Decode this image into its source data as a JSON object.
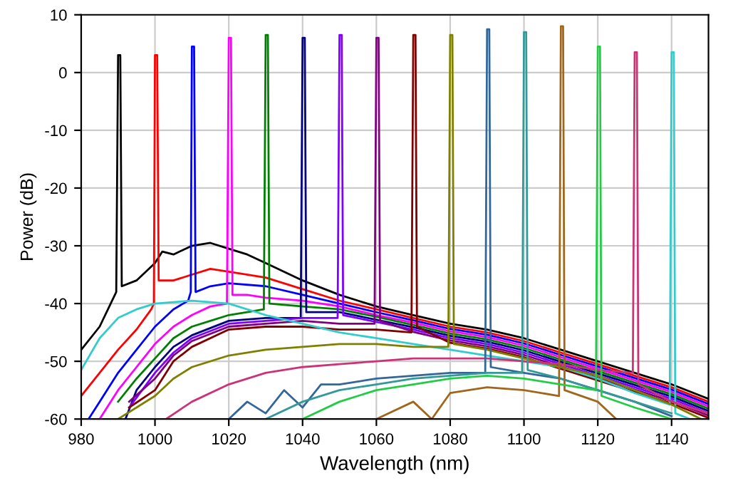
{
  "chart_data": {
    "type": "line",
    "xlabel": "Wavelength (nm)",
    "ylabel": "Power (dB)",
    "xlim": [
      980,
      1150
    ],
    "ylim": [
      -60,
      10
    ],
    "xticks": [
      980,
      1000,
      1020,
      1040,
      1060,
      1080,
      1100,
      1120,
      1140
    ],
    "yticks": [
      -60,
      -50,
      -40,
      -30,
      -20,
      -10,
      0,
      10
    ],
    "grid": true,
    "line_style": "solid",
    "series": [
      {
        "color": "#000000",
        "x": [
          980,
          985,
          988,
          989.5,
          990,
          990.6,
          991,
          995,
          1000,
          1002,
          1005,
          1010,
          1015,
          1020,
          1025,
          1030,
          1040,
          1050,
          1060,
          1070,
          1080,
          1090,
          1100,
          1110,
          1120,
          1130,
          1140,
          1150
        ],
        "values": [
          -48,
          -44,
          -40,
          -38,
          3,
          3,
          -37,
          -36,
          -33,
          -31,
          -31.5,
          -30,
          -29.5,
          -30.5,
          -31.5,
          -33,
          -36,
          -38.5,
          -40.5,
          -42,
          -43.5,
          -44.5,
          -46,
          -48,
          -50,
          -52,
          -54,
          -56.5
        ]
      },
      {
        "color": "#ff0000",
        "x": [
          980,
          985,
          990,
          995,
          999,
          999.7,
          1000,
          1000.6,
          1001,
          1005,
          1010,
          1015,
          1020,
          1030,
          1040,
          1050,
          1060,
          1070,
          1080,
          1090,
          1100,
          1110,
          1120,
          1130,
          1140,
          1150
        ],
        "values": [
          -56,
          -52,
          -48,
          -44.5,
          -41,
          -40,
          3,
          3,
          -36,
          -36,
          -35,
          -34,
          -34.5,
          -35.5,
          -37.5,
          -39.5,
          -41,
          -42.5,
          -44,
          -45,
          -46.5,
          -48.5,
          -50.5,
          -52.5,
          -54.5,
          -57
        ]
      },
      {
        "color": "#0000ff",
        "x": [
          982,
          985,
          990,
          995,
          1000,
          1005,
          1009,
          1009.7,
          1010,
          1010.6,
          1011,
          1015,
          1020,
          1030,
          1040,
          1050,
          1060,
          1070,
          1080,
          1090,
          1100,
          1110,
          1120,
          1130,
          1140,
          1150
        ],
        "values": [
          -60,
          -57,
          -52,
          -48,
          -44,
          -41,
          -39.5,
          -38,
          4.5,
          4.5,
          -38,
          -37,
          -36.5,
          -37,
          -38.5,
          -40,
          -41.5,
          -42.9,
          -44.4,
          -45.4,
          -46.9,
          -48.9,
          -50.9,
          -52.9,
          -54.9,
          -57.4
        ]
      },
      {
        "color": "#ff00ff",
        "x": [
          985,
          990,
          995,
          1000,
          1005,
          1010,
          1015,
          1019.5,
          1020,
          1020.6,
          1021,
          1025,
          1030,
          1040,
          1050,
          1060,
          1070,
          1080,
          1090,
          1100,
          1110,
          1120,
          1130,
          1140,
          1150
        ],
        "values": [
          -60,
          -55,
          -51,
          -47,
          -44,
          -42,
          -40.5,
          -40,
          6,
          6,
          -38.5,
          -38.5,
          -39,
          -39.5,
          -40.5,
          -42,
          -43.3,
          -44.8,
          -45.8,
          -47.3,
          -49.3,
          -51.3,
          -53.3,
          -55.3,
          -57.8
        ]
      },
      {
        "color": "#008000",
        "x": [
          990,
          995,
          1000,
          1005,
          1010,
          1015,
          1020,
          1025,
          1029.5,
          1030,
          1030.6,
          1031,
          1040,
          1050,
          1060,
          1070,
          1080,
          1090,
          1100,
          1110,
          1120,
          1130,
          1140,
          1150
        ],
        "values": [
          -57,
          -53,
          -49.5,
          -46,
          -44,
          -43,
          -42,
          -41.5,
          -41,
          6.5,
          6.5,
          -40,
          -40.5,
          -41,
          -42.3,
          -43.7,
          -45.2,
          -46.2,
          -47.7,
          -49.7,
          -51.7,
          -53.7,
          -55.7,
          -58.2
        ]
      },
      {
        "color": "#000080",
        "x": [
          992,
          995,
          1000,
          1005,
          1010,
          1020,
          1030,
          1039.5,
          1040,
          1040.6,
          1041,
          1050,
          1060,
          1070,
          1080,
          1090,
          1100,
          1110,
          1120,
          1130,
          1140,
          1150
        ],
        "values": [
          -60,
          -55,
          -51,
          -47.5,
          -45.5,
          -43,
          -42.5,
          -42.5,
          6,
          6,
          -41.5,
          -41.5,
          -42.8,
          -44.1,
          -45.6,
          -46.6,
          -48.1,
          -50.1,
          -52.1,
          -54.1,
          -56.1,
          -58.6
        ]
      },
      {
        "color": "#8000ff",
        "x": [
          993,
          1000,
          1005,
          1010,
          1020,
          1030,
          1040,
          1049.5,
          1050,
          1050.6,
          1051,
          1060,
          1070,
          1080,
          1090,
          1100,
          1110,
          1120,
          1130,
          1140,
          1150
        ],
        "values": [
          -58,
          -52,
          -48.5,
          -46,
          -43.5,
          -43,
          -42.5,
          -42.5,
          6.5,
          6.5,
          -42,
          -43.2,
          -44.5,
          -46,
          -47,
          -48.5,
          -50.5,
          -52.5,
          -54.5,
          -56.5,
          -59
        ]
      },
      {
        "color": "#800080",
        "x": [
          993,
          1000,
          1005,
          1010,
          1020,
          1030,
          1040,
          1050,
          1059.5,
          1060,
          1060.6,
          1061,
          1070,
          1080,
          1090,
          1100,
          1110,
          1120,
          1130,
          1140,
          1150
        ],
        "values": [
          -57,
          -53,
          -49,
          -46.5,
          -44,
          -43.5,
          -43,
          -43.5,
          -43.5,
          6,
          6,
          -43,
          -44.9,
          -46.4,
          -47.4,
          -48.9,
          -50.9,
          -52.9,
          -54.9,
          -56.9,
          -59.4
        ]
      },
      {
        "color": "#800000",
        "x": [
          993,
          1000,
          1005,
          1010,
          1020,
          1030,
          1040,
          1050,
          1060,
          1069.5,
          1070,
          1070.6,
          1071,
          1080,
          1090,
          1100,
          1110,
          1120,
          1130,
          1140,
          1150
        ],
        "values": [
          -58,
          -55,
          -50,
          -47.5,
          -44.5,
          -44,
          -44,
          -44.5,
          -44.5,
          -45,
          6.5,
          6.5,
          -44,
          -46.8,
          -47.8,
          -49.3,
          -51.3,
          -53.3,
          -55.3,
          -57.3,
          -59.8
        ]
      },
      {
        "color": "#33cccc",
        "x": [
          980,
          985,
          990,
          995,
          1000,
          1010,
          1020,
          1030,
          1040,
          1050,
          1060,
          1070,
          1080,
          1090,
          1100,
          1110,
          1120,
          1130,
          1139.5,
          1140,
          1140.6,
          1141,
          1145
        ],
        "values": [
          -51.5,
          -46,
          -42.5,
          -41,
          -40,
          -39.5,
          -40,
          -42,
          -43.5,
          -45,
          -46,
          -47,
          -48,
          -49,
          -50,
          -51,
          -53,
          -55.5,
          -57.5,
          3.5,
          3.5,
          -59,
          -60
        ]
      },
      {
        "color": "#808000",
        "x": [
          990,
          1000,
          1005,
          1010,
          1020,
          1030,
          1040,
          1050,
          1060,
          1070,
          1079.5,
          1080,
          1080.6,
          1081,
          1090,
          1100,
          1110,
          1120,
          1130,
          1140,
          1148
        ],
        "values": [
          -60,
          -56,
          -53,
          -51,
          -49,
          -48,
          -47.5,
          -47,
          -47,
          -47.5,
          -47.5,
          6.5,
          6.5,
          -47,
          -48,
          -49.5,
          -51,
          -52.5,
          -55,
          -57.5,
          -60
        ]
      },
      {
        "color": "#cc3377",
        "x": [
          1003,
          1010,
          1020,
          1030,
          1040,
          1050,
          1060,
          1070,
          1080,
          1090,
          1100,
          1110,
          1120,
          1129.5,
          1130,
          1130.6,
          1131,
          1140,
          1150
        ],
        "values": [
          -60,
          -57,
          -54,
          -52,
          -51,
          -50.5,
          -50,
          -49.5,
          -49.5,
          -49.5,
          -50,
          -50.5,
          -51.5,
          -52,
          3.5,
          3.5,
          -54,
          -57,
          -59
        ]
      },
      {
        "color": "#336699",
        "x": [
          1020,
          1025,
          1030,
          1035,
          1040,
          1045,
          1050,
          1060,
          1070,
          1080,
          1089.5,
          1090,
          1090.6,
          1091,
          1100,
          1110,
          1120,
          1130,
          1140
        ],
        "values": [
          -60,
          -57,
          -59,
          -55,
          -58,
          -54,
          -54,
          -53,
          -52.5,
          -52,
          -52,
          7.5,
          7.5,
          -51,
          -52,
          -53,
          -55,
          -57,
          -59.5
        ]
      },
      {
        "color": "#339999",
        "x": [
          1030,
          1040,
          1050,
          1060,
          1070,
          1080,
          1090,
          1099.5,
          1100,
          1100.6,
          1101,
          1110,
          1120,
          1130,
          1140
        ],
        "values": [
          -60,
          -57,
          -55,
          -54,
          -53,
          -52.5,
          -52,
          -52,
          7,
          7,
          -51.5,
          -53,
          -55,
          -57,
          -59
        ]
      },
      {
        "color": "#a0661a",
        "x": [
          1060,
          1070,
          1075,
          1080,
          1090,
          1100,
          1109.5,
          1110,
          1110.6,
          1111,
          1120,
          1125
        ],
        "values": [
          -60,
          -57,
          -60,
          -55.5,
          -54.5,
          -55,
          -56,
          8,
          8,
          -55,
          -57,
          -60
        ]
      },
      {
        "color": "#22cc44",
        "x": [
          1040,
          1050,
          1060,
          1070,
          1080,
          1090,
          1100,
          1110,
          1119.5,
          1120,
          1120.6,
          1121,
          1130,
          1140
        ],
        "values": [
          -60,
          -57,
          -55,
          -54,
          -53,
          -52.5,
          -53,
          -54,
          -55,
          4.5,
          4.5,
          -56,
          -58,
          -60
        ]
      }
    ]
  }
}
